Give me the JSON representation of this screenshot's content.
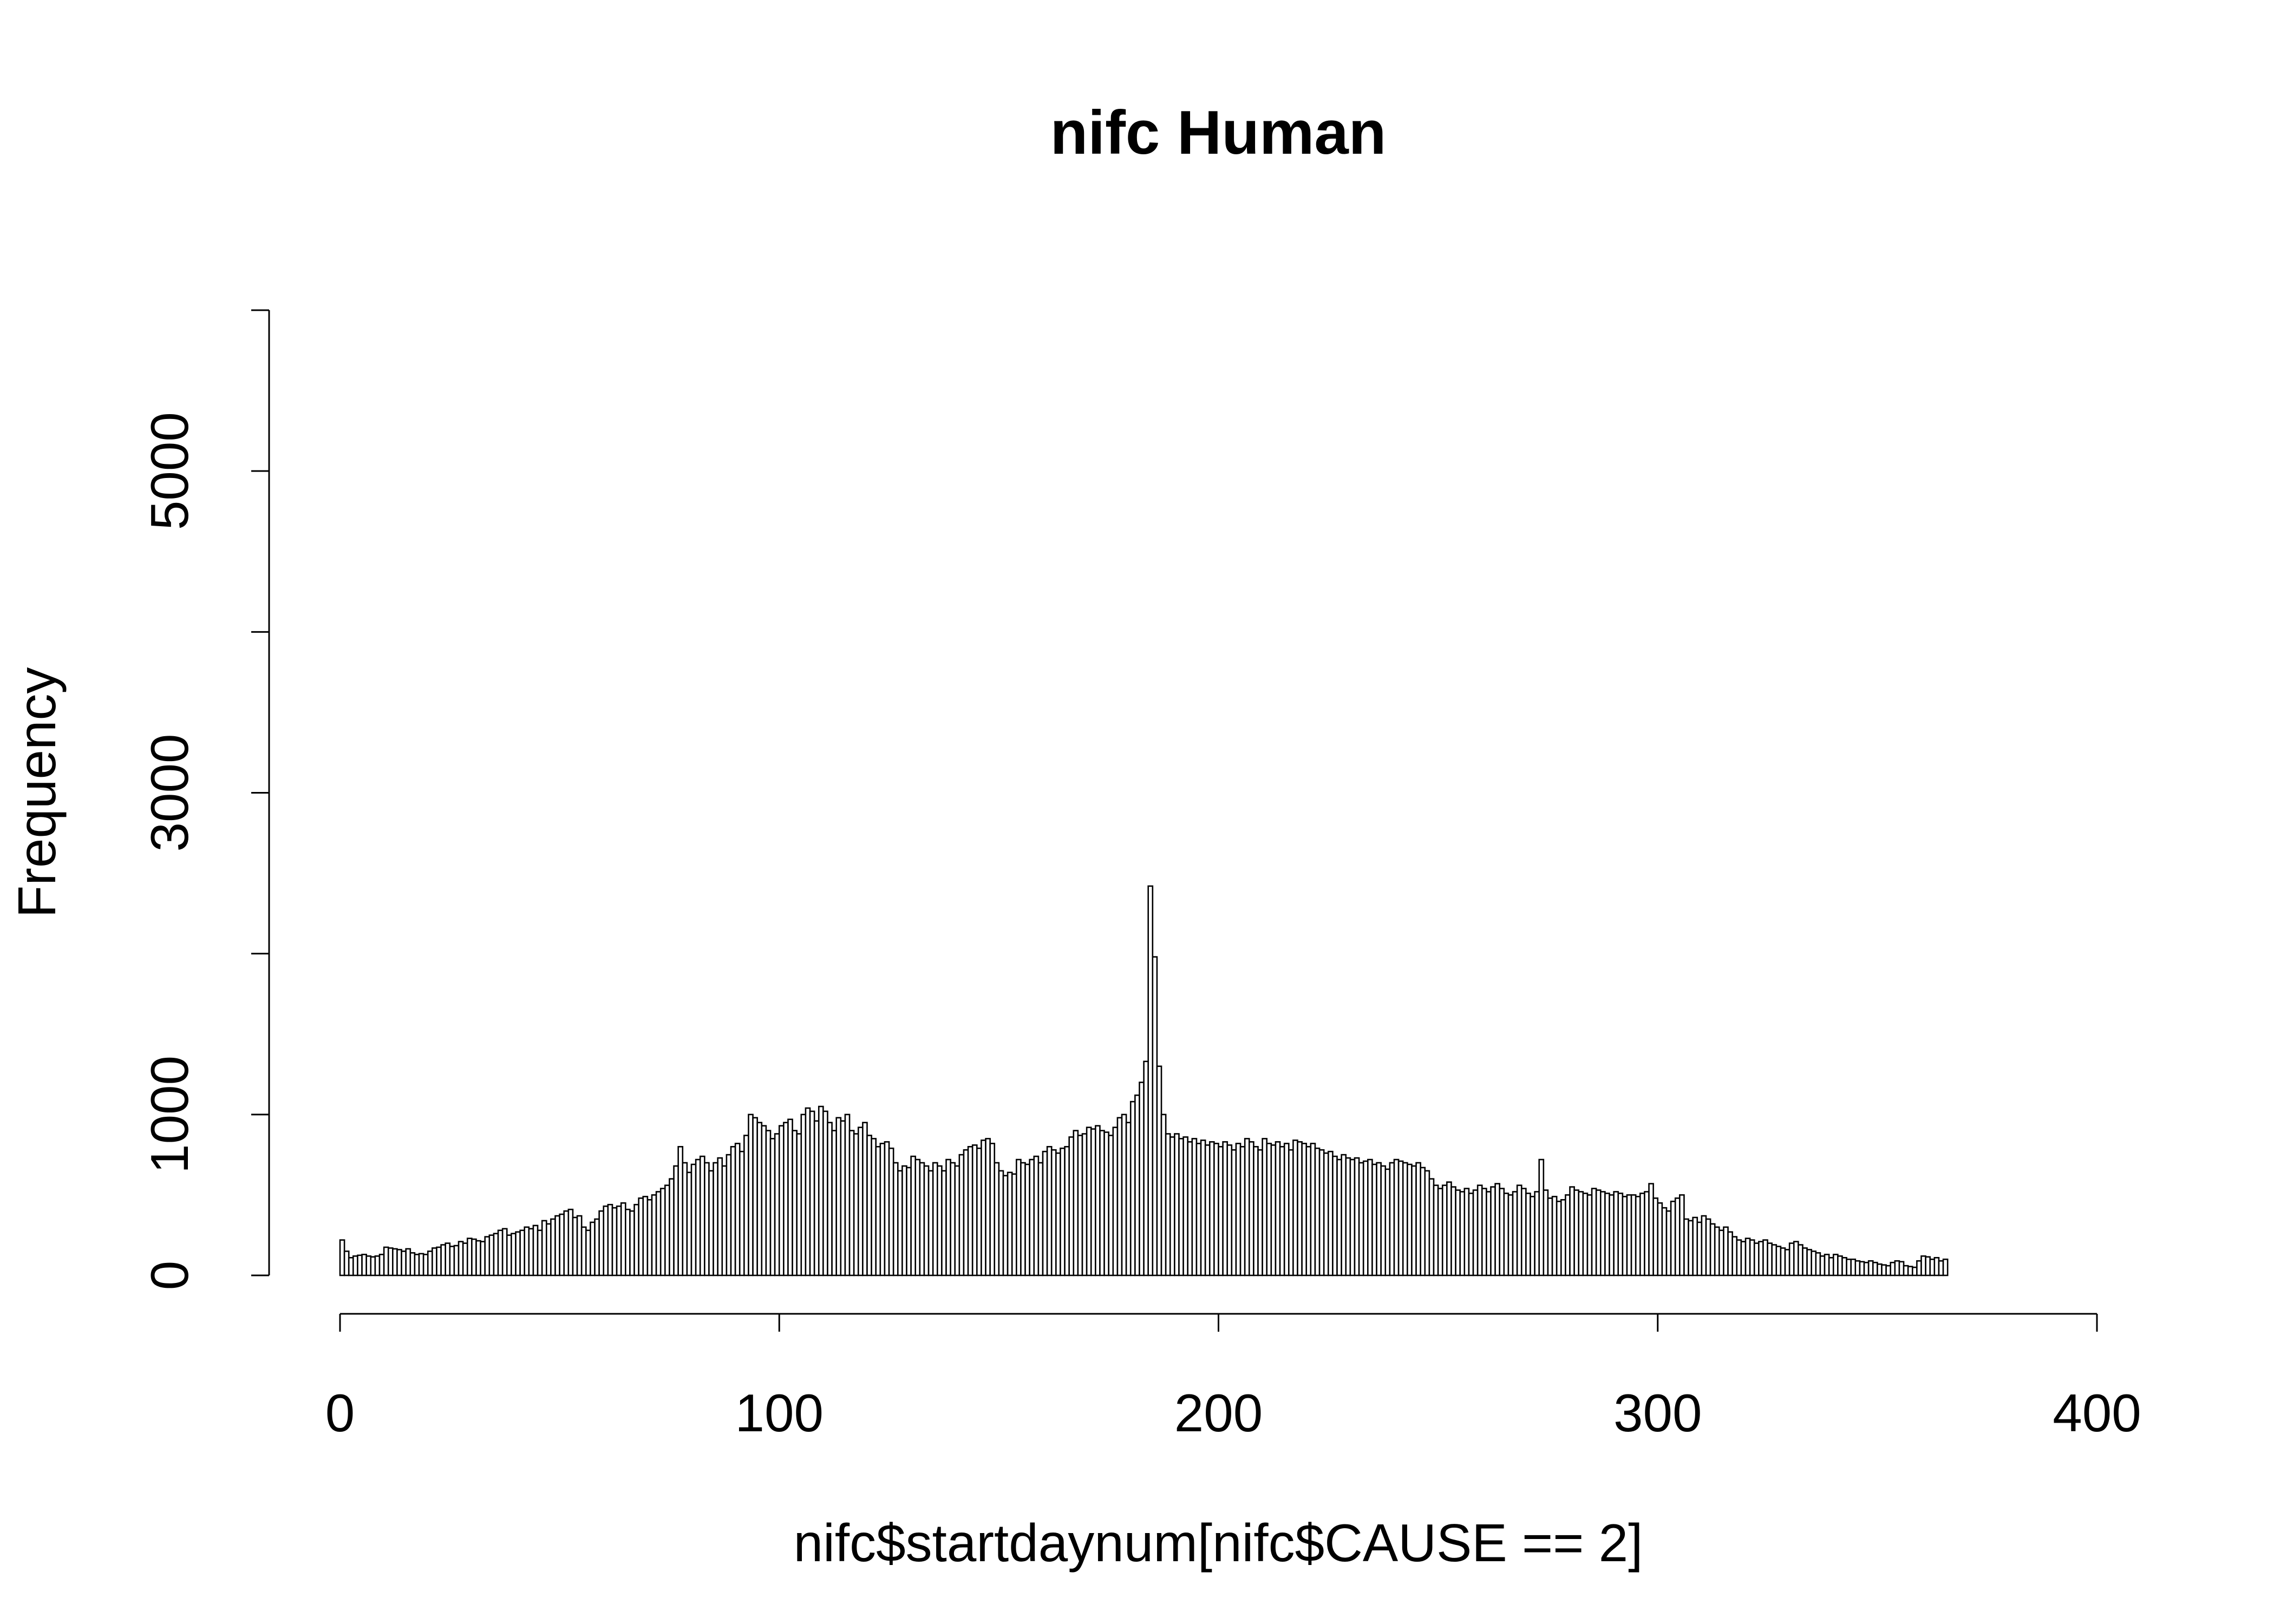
{
  "chart_data": {
    "type": "histogram",
    "title": "nifc Human",
    "x_label": "nifc$startdaynum[nifc$CAUSE == 2]",
    "y_label": "Frequency",
    "bins": [
      0,
      1,
      2,
      3,
      4,
      5,
      6,
      7,
      8,
      9,
      10,
      11,
      12,
      13,
      14,
      15,
      16,
      17,
      18,
      19,
      20,
      21,
      22,
      23,
      24,
      25,
      26,
      27,
      28,
      29,
      30,
      31,
      32,
      33,
      34,
      35,
      36,
      37,
      38,
      39,
      40,
      41,
      42,
      43,
      44,
      45,
      46,
      47,
      48,
      49,
      50,
      51,
      52,
      53,
      54,
      55,
      56,
      57,
      58,
      59,
      60,
      61,
      62,
      63,
      64,
      65,
      66,
      67,
      68,
      69,
      70,
      71,
      72,
      73,
      74,
      75,
      76,
      77,
      78,
      79,
      80,
      81,
      82,
      83,
      84,
      85,
      86,
      87,
      88,
      89,
      90,
      91,
      92,
      93,
      94,
      95,
      96,
      97,
      98,
      99,
      100,
      101,
      102,
      103,
      104,
      105,
      106,
      107,
      108,
      109,
      110,
      111,
      112,
      113,
      114,
      115,
      116,
      117,
      118,
      119,
      120,
      121,
      122,
      123,
      124,
      125,
      126,
      127,
      128,
      129,
      130,
      131,
      132,
      133,
      134,
      135,
      136,
      137,
      138,
      139,
      140,
      141,
      142,
      143,
      144,
      145,
      146,
      147,
      148,
      149,
      150,
      151,
      152,
      153,
      154,
      155,
      156,
      157,
      158,
      159,
      160,
      161,
      162,
      163,
      164,
      165,
      166,
      167,
      168,
      169,
      170,
      171,
      172,
      173,
      174,
      175,
      176,
      177,
      178,
      179,
      180,
      181,
      182,
      183,
      184,
      185,
      186,
      187,
      188,
      189,
      190,
      191,
      192,
      193,
      194,
      195,
      196,
      197,
      198,
      199,
      200,
      201,
      202,
      203,
      204,
      205,
      206,
      207,
      208,
      209,
      210,
      211,
      212,
      213,
      214,
      215,
      216,
      217,
      218,
      219,
      220,
      221,
      222,
      223,
      224,
      225,
      226,
      227,
      228,
      229,
      230,
      231,
      232,
      233,
      234,
      235,
      236,
      237,
      238,
      239,
      240,
      241,
      242,
      243,
      244,
      245,
      246,
      247,
      248,
      249,
      250,
      251,
      252,
      253,
      254,
      255,
      256,
      257,
      258,
      259,
      260,
      261,
      262,
      263,
      264,
      265,
      266,
      267,
      268,
      269,
      270,
      271,
      272,
      273,
      274,
      275,
      276,
      277,
      278,
      279,
      280,
      281,
      282,
      283,
      284,
      285,
      286,
      287,
      288,
      289,
      290,
      291,
      292,
      293,
      294,
      295,
      296,
      297,
      298,
      299,
      300,
      301,
      302,
      303,
      304,
      305,
      306,
      307,
      308,
      309,
      310,
      311,
      312,
      313,
      314,
      315,
      316,
      317,
      318,
      319,
      320,
      321,
      322,
      323,
      324,
      325,
      326,
      327,
      328,
      329,
      330,
      331,
      332,
      333,
      334,
      335,
      336,
      337,
      338,
      339,
      340,
      341,
      342,
      343,
      344,
      345,
      346,
      347,
      348,
      349,
      350,
      351,
      352,
      353,
      354,
      355,
      356,
      357,
      358,
      359,
      360,
      361,
      362,
      363,
      364,
      365,
      366
    ],
    "values": [
      220,
      150,
      110,
      120,
      125,
      130,
      120,
      115,
      120,
      130,
      175,
      170,
      165,
      160,
      150,
      165,
      140,
      130,
      135,
      130,
      150,
      170,
      175,
      190,
      200,
      180,
      185,
      210,
      200,
      230,
      225,
      215,
      210,
      240,
      250,
      260,
      280,
      290,
      250,
      260,
      270,
      280,
      300,
      290,
      310,
      280,
      340,
      320,
      350,
      370,
      380,
      400,
      410,
      360,
      370,
      300,
      280,
      330,
      350,
      400,
      430,
      440,
      420,
      430,
      450,
      410,
      400,
      440,
      480,
      490,
      470,
      500,
      520,
      540,
      560,
      600,
      680,
      800,
      700,
      640,
      690,
      720,
      740,
      700,
      650,
      700,
      730,
      680,
      750,
      800,
      820,
      770,
      870,
      1000,
      980,
      950,
      930,
      900,
      850,
      880,
      930,
      950,
      970,
      900,
      880,
      1000,
      1040,
      1020,
      960,
      1050,
      1020,
      950,
      900,
      980,
      960,
      1000,
      900,
      880,
      920,
      950,
      870,
      850,
      800,
      820,
      830,
      790,
      700,
      650,
      680,
      670,
      740,
      720,
      700,
      680,
      650,
      700,
      680,
      650,
      720,
      700,
      680,
      750,
      780,
      800,
      810,
      790,
      840,
      850,
      820,
      700,
      650,
      620,
      640,
      630,
      720,
      700,
      690,
      720,
      740,
      700,
      770,
      800,
      780,
      760,
      790,
      800,
      860,
      900,
      870,
      880,
      920,
      910,
      930,
      900,
      890,
      870,
      920,
      980,
      1000,
      950,
      1080,
      1120,
      1200,
      1330,
      2420,
      1980,
      1300,
      1000,
      880,
      860,
      880,
      850,
      860,
      830,
      850,
      820,
      840,
      810,
      830,
      820,
      800,
      830,
      810,
      780,
      820,
      800,
      850,
      830,
      800,
      780,
      850,
      820,
      810,
      830,
      800,
      820,
      780,
      840,
      830,
      820,
      800,
      820,
      790,
      780,
      760,
      770,
      740,
      720,
      750,
      730,
      720,
      730,
      700,
      710,
      720,
      690,
      700,
      680,
      660,
      700,
      720,
      710,
      700,
      690,
      680,
      700,
      670,
      650,
      600,
      560,
      540,
      560,
      580,
      550,
      530,
      520,
      540,
      510,
      530,
      560,
      540,
      520,
      550,
      570,
      540,
      510,
      500,
      520,
      560,
      540,
      510,
      490,
      520,
      720,
      530,
      480,
      490,
      460,
      470,
      500,
      550,
      530,
      520,
      510,
      500,
      540,
      530,
      520,
      510,
      500,
      520,
      510,
      490,
      500,
      500,
      490,
      510,
      520,
      570,
      480,
      450,
      420,
      400,
      460,
      480,
      500,
      350,
      340,
      360,
      330,
      370,
      350,
      320,
      300,
      280,
      300,
      270,
      240,
      220,
      210,
      230,
      220,
      200,
      210,
      220,
      200,
      190,
      180,
      170,
      160,
      200,
      210,
      190,
      170,
      160,
      150,
      140,
      120,
      130,
      110,
      130,
      120,
      110,
      100,
      100,
      90,
      85,
      80,
      90,
      80,
      70,
      65,
      60,
      80,
      90,
      85,
      60,
      55,
      50,
      90,
      120,
      115,
      100,
      110,
      90,
      100
    ],
    "xlim": [
      0,
      400
    ],
    "xticks": [
      0,
      100,
      200,
      300,
      400
    ],
    "ylim": [
      0,
      6000
    ],
    "yticks": [
      0,
      1000,
      2000,
      3000,
      4000,
      5000,
      6000
    ]
  }
}
